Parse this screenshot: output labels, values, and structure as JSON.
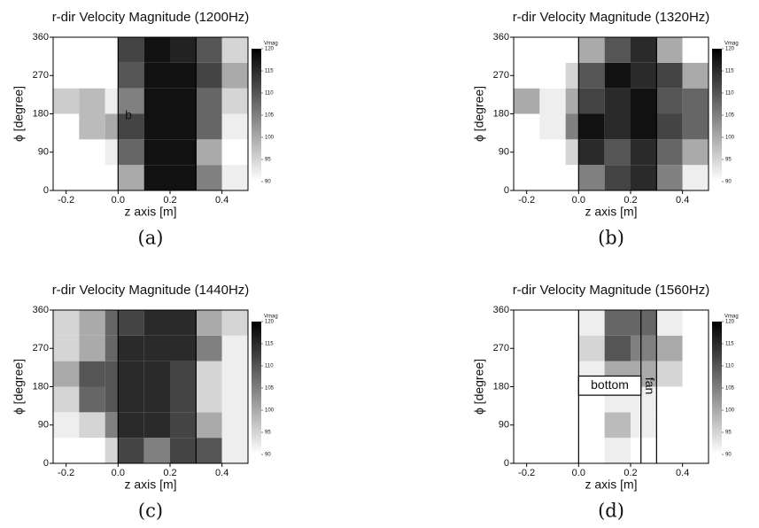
{
  "chart_data": [
    {
      "type": "heatmap",
      "title": "r-dir Velocity Magnitude (1200Hz)",
      "xlabel": "z axis [m]",
      "ylabel": "ϕ [degree]",
      "caption": "(a)",
      "xlim": [
        -0.25,
        0.5
      ],
      "ylim": [
        0,
        360
      ],
      "xticks": [
        -0.2,
        {
          "value": 0,
          "label": "0.0"
        },
        0.2,
        0.4
      ],
      "yticks": [
        0,
        90,
        180,
        270,
        360
      ],
      "xbins": [
        -0.25,
        -0.15,
        -0.05,
        0,
        0.1,
        0.2,
        0.3,
        0.4,
        0.5
      ],
      "ybins": [
        0,
        60,
        120,
        180,
        240,
        300,
        360
      ],
      "values": [
        [
          90,
          90,
          90,
          100,
          118,
          118,
          105,
          92
        ],
        [
          90,
          90,
          92,
          108,
          118,
          118,
          100,
          90
        ],
        [
          90,
          98,
          100,
          112,
          118,
          118,
          108,
          92
        ],
        [
          96,
          98,
          92,
          105,
          118,
          118,
          108,
          95
        ],
        [
          90,
          90,
          90,
          110,
          118,
          118,
          112,
          100
        ],
        [
          90,
          90,
          90,
          112,
          118,
          116,
          110,
          95
        ]
      ],
      "zlim": [
        90,
        120
      ],
      "zticks": [
        90,
        95,
        100,
        105,
        110,
        115,
        120
      ],
      "colorbar_label": "Vmag",
      "vlines": [
        0,
        0.3
      ],
      "annotations": [
        {
          "text": "b",
          "x": 0.04,
          "y": 175
        }
      ]
    },
    {
      "type": "heatmap",
      "title": "r-dir Velocity Magnitude (1320Hz)",
      "xlabel": "z axis [m]",
      "ylabel": "ϕ [degree]",
      "caption": "(b)",
      "xlim": [
        -0.25,
        0.5
      ],
      "ylim": [
        0,
        360
      ],
      "xticks": [
        -0.2,
        {
          "value": 0,
          "label": "0.0"
        },
        0.2,
        0.4
      ],
      "yticks": [
        0,
        90,
        180,
        270,
        360
      ],
      "xbins": [
        -0.25,
        -0.15,
        -0.05,
        0,
        0.1,
        0.2,
        0.3,
        0.4,
        0.5
      ],
      "ybins": [
        0,
        60,
        120,
        180,
        240,
        300,
        360
      ],
      "values": [
        [
          90,
          90,
          90,
          105,
          112,
          115,
          105,
          92
        ],
        [
          90,
          90,
          95,
          115,
          110,
          115,
          108,
          100
        ],
        [
          90,
          92,
          105,
          118,
          115,
          118,
          112,
          108
        ],
        [
          100,
          92,
          100,
          112,
          115,
          118,
          110,
          108
        ],
        [
          90,
          90,
          95,
          110,
          118,
          115,
          112,
          100
        ],
        [
          90,
          90,
          90,
          100,
          110,
          115,
          100,
          90
        ]
      ],
      "zlim": [
        90,
        120
      ],
      "zticks": [
        90,
        95,
        100,
        105,
        110,
        115,
        120
      ],
      "colorbar_label": "Vmag",
      "vlines": [
        0,
        0.3
      ]
    },
    {
      "type": "heatmap",
      "title": "r-dir Velocity Magnitude (1440Hz)",
      "xlabel": "z axis [m]",
      "ylabel": "ϕ [degree]",
      "caption": "(c)",
      "xlim": [
        -0.25,
        0.5
      ],
      "ylim": [
        0,
        360
      ],
      "xticks": [
        -0.2,
        {
          "value": 0,
          "label": "0.0"
        },
        0.2,
        0.4
      ],
      "yticks": [
        0,
        90,
        180,
        270,
        360
      ],
      "xbins": [
        -0.25,
        -0.15,
        -0.05,
        0,
        0.1,
        0.2,
        0.3,
        0.4,
        0.5
      ],
      "ybins": [
        0,
        60,
        120,
        180,
        240,
        300,
        360
      ],
      "values": [
        [
          90,
          90,
          95,
          112,
          105,
          112,
          110,
          92
        ],
        [
          92,
          95,
          105,
          115,
          115,
          112,
          100,
          92
        ],
        [
          95,
          108,
          110,
          115,
          115,
          112,
          95,
          92
        ],
        [
          100,
          110,
          110,
          115,
          115,
          112,
          95,
          92
        ],
        [
          95,
          100,
          108,
          115,
          115,
          115,
          105,
          92
        ],
        [
          95,
          100,
          108,
          112,
          115,
          115,
          100,
          95
        ]
      ],
      "zlim": [
        90,
        120
      ],
      "zticks": [
        90,
        95,
        100,
        105,
        110,
        115,
        120
      ],
      "colorbar_label": "Vmag",
      "vlines": [
        0,
        0.3
      ]
    },
    {
      "type": "heatmap",
      "title": "r-dir Velocity Magnitude (1560Hz)",
      "xlabel": "z axis [m]",
      "ylabel": "ϕ [degree]",
      "caption": "(d)",
      "xlim": [
        -0.25,
        0.5
      ],
      "ylim": [
        0,
        360
      ],
      "xticks": [
        -0.2,
        {
          "value": 0,
          "label": "0.0"
        },
        0.2,
        0.4
      ],
      "yticks": [
        0,
        90,
        180,
        270,
        360
      ],
      "xbins": [
        -0.25,
        -0.15,
        -0.05,
        0,
        0.1,
        0.2,
        0.3,
        0.4,
        0.5
      ],
      "ybins": [
        0,
        60,
        120,
        180,
        240,
        300,
        360
      ],
      "values": [
        [
          90,
          90,
          90,
          90,
          92,
          90,
          90,
          90
        ],
        [
          90,
          90,
          90,
          90,
          98,
          92,
          90,
          90
        ],
        [
          90,
          90,
          90,
          90,
          92,
          92,
          90,
          90
        ],
        [
          90,
          90,
          90,
          92,
          100,
          100,
          95,
          90
        ],
        [
          90,
          90,
          90,
          95,
          110,
          105,
          100,
          90
        ],
        [
          90,
          90,
          90,
          92,
          108,
          108,
          92,
          90
        ]
      ],
      "zlim": [
        90,
        120
      ],
      "zticks": [
        90,
        95,
        100,
        105,
        110,
        115,
        120
      ],
      "colorbar_label": "Vmag",
      "vlines": [
        0,
        0.24,
        0.3
      ],
      "boxes": [
        {
          "x": [
            0,
            0.24
          ],
          "y": [
            160,
            205
          ]
        }
      ],
      "annotations": [
        {
          "text": "bottom",
          "x": 0.12,
          "y": 182
        },
        {
          "text": "fan",
          "x": 0.27,
          "y": 182,
          "rotate": true
        }
      ]
    }
  ]
}
